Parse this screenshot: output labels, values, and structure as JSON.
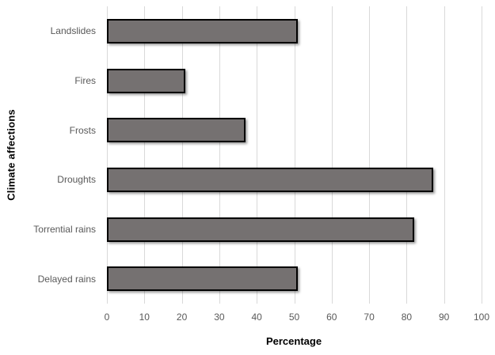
{
  "chart_data": {
    "type": "bar",
    "orientation": "horizontal",
    "title": "",
    "xlabel": "Percentage",
    "ylabel": "Climate affections",
    "categories": [
      "Landslides",
      "Fires",
      "Frosts",
      "Droughts",
      "Torrential rains",
      "Delayed rains"
    ],
    "values": [
      51,
      21,
      37,
      87,
      82,
      51
    ],
    "xlim": [
      0,
      100
    ],
    "xticks": [
      0,
      10,
      20,
      30,
      40,
      50,
      60,
      70,
      80,
      90,
      100
    ],
    "grid": true,
    "legend": false,
    "bar_color": "#757171",
    "bar_border_color": "#000000",
    "gridline_color": "#d9d9d9",
    "tick_label_color": "#595959",
    "axis_title_color": "#000000",
    "background_color": "#ffffff"
  }
}
